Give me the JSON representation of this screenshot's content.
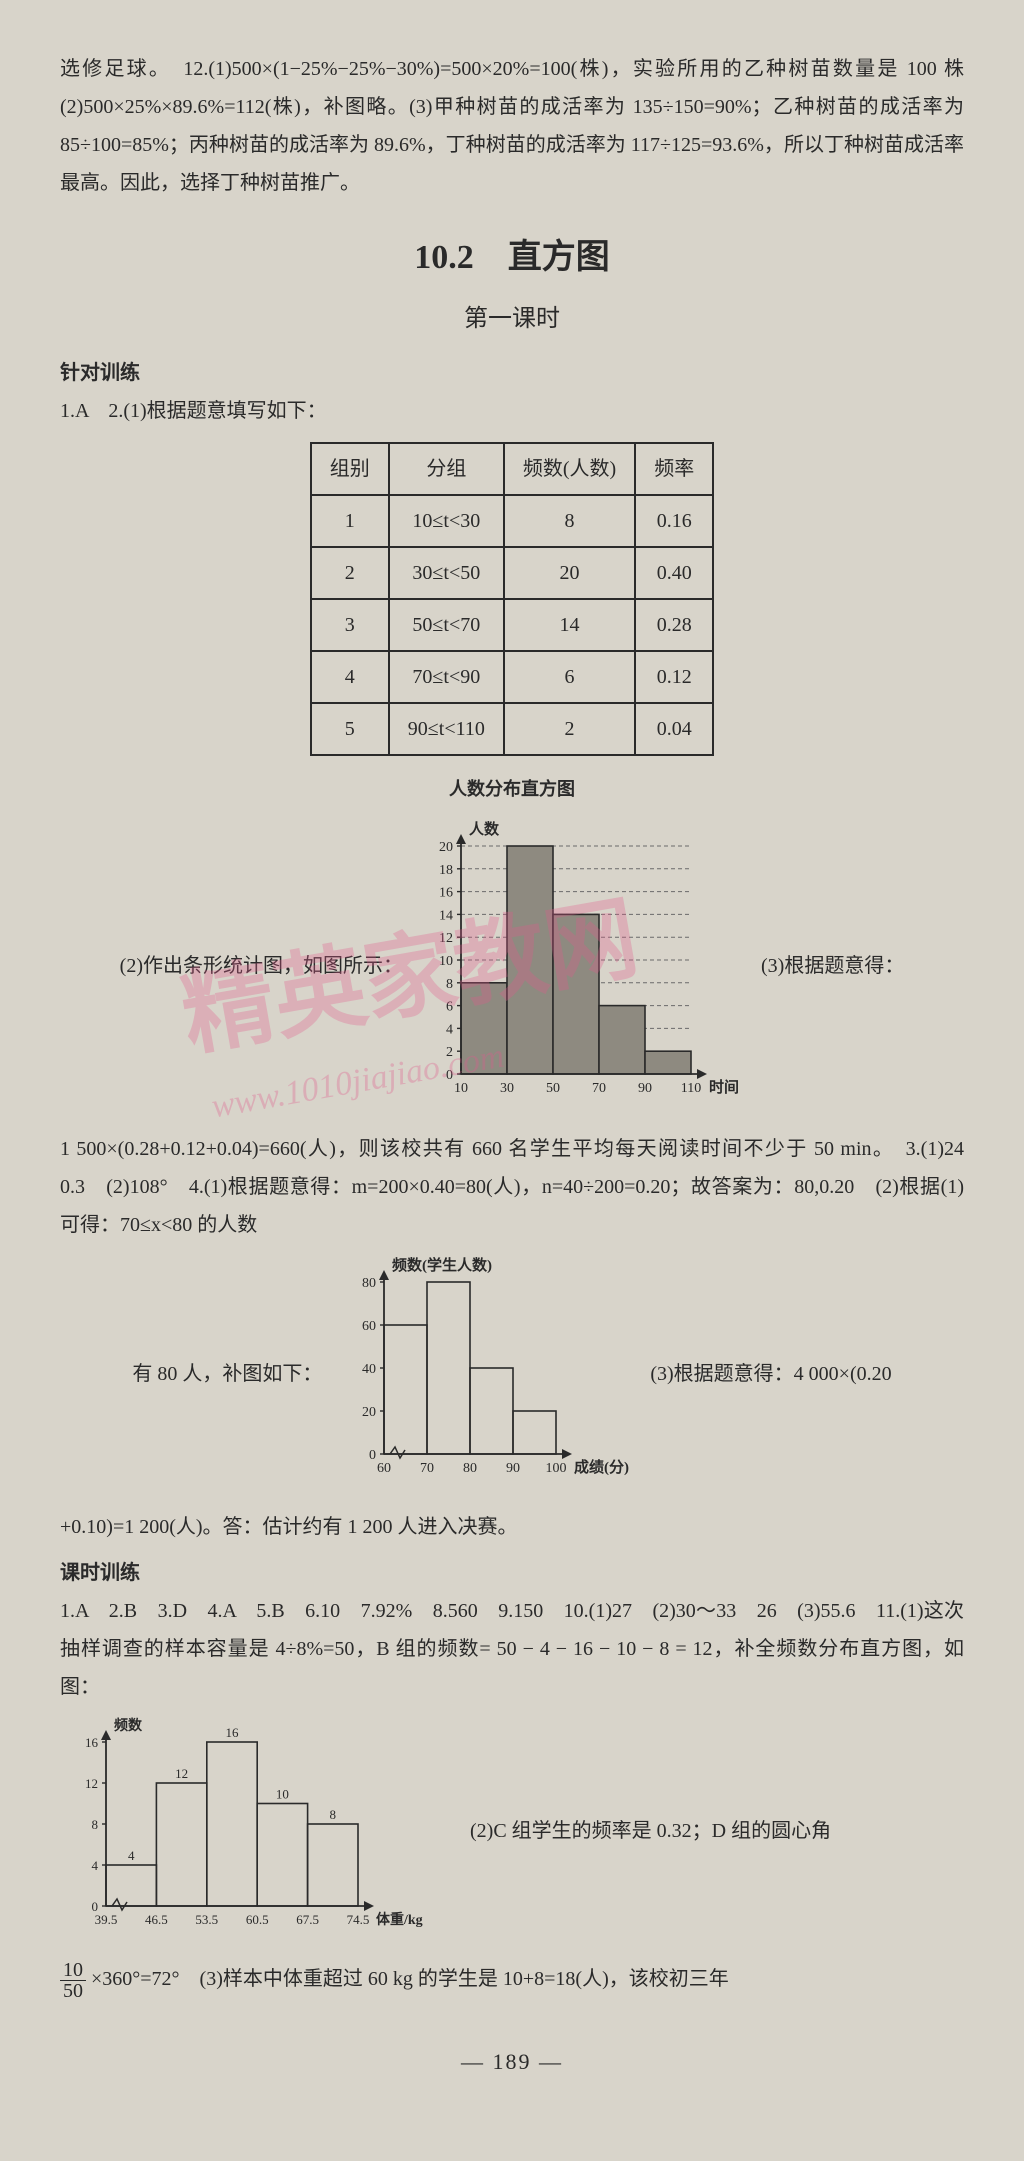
{
  "intro_paragraph": "选修足球。　12.(1)500×(1−25%−25%−30%)=500×20%=100(株)，实验所用的乙种树苗数量是 100 株　(2)500×25%×89.6%=112(株)，补图略。(3)甲种树苗的成活率为 135÷150=90%；乙种树苗的成活率为 85÷100=85%；丙种树苗的成活率为 89.6%，丁种树苗的成活率为 117÷125=93.6%，所以丁种树苗成活率最高。因此，选择丁种树苗推广。",
  "section_title": "10.2　直方图",
  "subtitle": "第一课时",
  "subhead1": "针对训练",
  "line_1a2": "1.A　2.(1)根据题意填写如下：",
  "table1": {
    "columns": [
      "组别",
      "分组",
      "频数(人数)",
      "频率"
    ],
    "rows": [
      [
        "1",
        "10≤t<30",
        "8",
        "0.16"
      ],
      [
        "2",
        "30≤t<50",
        "20",
        "0.40"
      ],
      [
        "3",
        "50≤t<70",
        "14",
        "0.28"
      ],
      [
        "4",
        "70≤t<90",
        "6",
        "0.12"
      ],
      [
        "5",
        "90≤t<110",
        "2",
        "0.04"
      ]
    ],
    "border_color": "#2a2a2a"
  },
  "chart1": {
    "type": "histogram",
    "title_above": "人数分布直方图",
    "ylabel": "人数",
    "xlabel": "时间",
    "bins_labels": [
      "10",
      "30",
      "50",
      "70",
      "90",
      "110"
    ],
    "values": [
      8,
      20,
      14,
      6,
      2
    ],
    "ymax": 20,
    "ytick_step": 2,
    "background_color": "#d8d4ca",
    "bar_fill": "#8e8a80",
    "bar_stroke": "#2a2a2a",
    "axis_color": "#2a2a2a",
    "grid_color": "#6a6a6a",
    "fontsize": 14
  },
  "left_text_c1": "(2)作出条形统计图，如图所示：",
  "right_text_c1": "(3)根据题意得：",
  "mid_paragraph": "1 500×(0.28+0.12+0.04)=660(人)，则该校共有 660 名学生平均每天阅读时间不少于 50 min。　3.(1)24　0.3　(2)108°　4.(1)根据题意得：m=200×0.40=80(人)，n=40÷200=0.20；故答案为：80,0.20　(2)根据(1)可得：70≤x<80 的人数",
  "chart2": {
    "type": "histogram",
    "ylabel": "频数(学生人数)",
    "xlabel": "成绩(分)",
    "bins_labels": [
      "60",
      "70",
      "80",
      "90",
      "100"
    ],
    "values": [
      60,
      80,
      40,
      20
    ],
    "ymax": 80,
    "ytick_step": 20,
    "background_color": "#d8d4ca",
    "bar_fill": "none",
    "bar_stroke": "#2a2a2a",
    "axis_color": "#2a2a2a",
    "fontsize": 14
  },
  "left_text_c2": "有 80 人，补图如下：",
  "right_text_c2": "(3)根据题意得：4 000×(0.20",
  "after_chart2": "+0.10)=1 200(人)。答：估计约有 1 200 人进入决赛。",
  "subhead2": "课时训练",
  "keshi_line": "1.A　2.B　3.D　4.A　5.B　6.10　7.92%　8.560　9.150　10.(1)27　(2)30～33　26　(3)55.6　11.(1)这次抽样调查的样本容量是 4÷8%=50，B 组的频数= 50 − 4 − 16 − 10 − 8 = 12，补全频数分布直方图，如图：",
  "chart3": {
    "type": "histogram",
    "ylabel": "频数",
    "xlabel": "体重/kg",
    "bins_labels": [
      "39.5",
      "46.5",
      "53.5",
      "60.5",
      "67.5",
      "74.5"
    ],
    "values": [
      4,
      12,
      16,
      10,
      8
    ],
    "value_labels": [
      "4",
      "12",
      "16",
      "10",
      "8"
    ],
    "ymax": 16,
    "ytick_step": 4,
    "background_color": "#d8d4ca",
    "bar_fill": "none",
    "bar_stroke": "#2a2a2a",
    "axis_color": "#2a2a2a",
    "fontsize": 13
  },
  "right_text_c3": "(2)C 组学生的频率是 0.32；D 组的圆心角",
  "final_line": "10/50 ×360°=72°　(3)样本中体重超过 60 kg 的学生是 10+8=18(人)，该校初三年",
  "page_num": "—  189  —",
  "watermark_text": "精英家教网",
  "watermark_url": "www.1010jiajiao.com"
}
